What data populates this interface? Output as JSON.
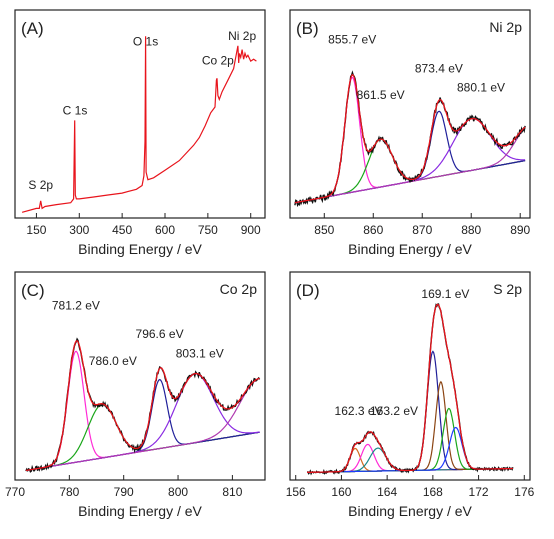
{
  "figure": {
    "colors": {
      "data": "#111111",
      "envelope": "#e8141c",
      "background": "#1a1a9a",
      "survey": "#e8141c",
      "magenta": "#ff2bd6",
      "green": "#1aa61a",
      "navy": "#20209a",
      "purple": "#8a2be2",
      "violet": "#b03ab0",
      "orange": "#d2691e",
      "olive": "#808000",
      "blue": "#1e3cff",
      "teal": "#1a8a8a",
      "brown": "#8b4513"
    }
  },
  "chart_data": [
    {
      "id": "A",
      "type": "line",
      "panel_label": "(A)",
      "corner_label": "",
      "xlabel": "Binding Energy / eV",
      "ylabel": "",
      "xlim": [
        75,
        950
      ],
      "ylim": [
        0,
        100
      ],
      "xticks": [
        150,
        300,
        450,
        600,
        750,
        900
      ],
      "tick_labels": [
        "150",
        "300",
        "450",
        "600",
        "750",
        "900"
      ],
      "grid": false,
      "annotations": [
        {
          "text": "S 2p",
          "x": 165,
          "y": 13
        },
        {
          "text": "C 1s",
          "x": 285,
          "y": 52
        },
        {
          "text": "O 1s",
          "x": 532,
          "y": 88
        },
        {
          "text": "Co 2p",
          "x": 785,
          "y": 78
        },
        {
          "text": "Ni 2p",
          "x": 870,
          "y": 91
        }
      ],
      "series": [
        {
          "color": "#e8141c",
          "x": [
            100,
            150,
            160,
            165,
            170,
            180,
            220,
            270,
            280,
            284,
            286,
            290,
            300,
            350,
            400,
            450,
            500,
            520,
            526,
            530,
            532,
            534,
            540,
            560,
            600,
            650,
            700,
            720,
            740,
            760,
            775,
            780,
            782,
            785,
            790,
            800,
            820,
            840,
            855,
            858,
            860,
            865,
            870,
            875,
            880,
            885,
            890,
            900,
            910,
            920
          ],
          "y": [
            3,
            5,
            5,
            9,
            5,
            6,
            7,
            8,
            10,
            51,
            12,
            10,
            10,
            11,
            12,
            13,
            15,
            17,
            22,
            40,
            95,
            24,
            20,
            21,
            25,
            30,
            38,
            42,
            48,
            55,
            58,
            72,
            73,
            64,
            62,
            66,
            72,
            78,
            90,
            81,
            86,
            84,
            88,
            83,
            86,
            84,
            85,
            82,
            83,
            82
          ]
        }
      ]
    },
    {
      "id": "B",
      "type": "line",
      "panel_label": "(B)",
      "corner_label": "Ni 2p",
      "xlabel": "Binding Energy / eV",
      "ylabel": "",
      "xlim": [
        843,
        892
      ],
      "ylim": [
        0,
        100
      ],
      "xticks": [
        850,
        860,
        870,
        880,
        890
      ],
      "tick_labels": [
        "850",
        "860",
        "870",
        "880",
        "890"
      ],
      "grid": false,
      "annotations": [
        {
          "text": "855.7 eV",
          "x": 855.7,
          "y": 89
        },
        {
          "text": "861.5 eV",
          "x": 861.5,
          "y": 60
        },
        {
          "text": "873.4 eV",
          "x": 873.4,
          "y": 74
        },
        {
          "text": "880.1 eV",
          "x": 882,
          "y": 64
        }
      ],
      "series": [
        {
          "name": "",
          "kind": "raw",
          "color": "#111111",
          "sigma": 0,
          "noise": 3.5,
          "x_start": 844,
          "x_end": 891
        },
        {
          "name": "",
          "kind": "envelope",
          "color": "#e8141c",
          "x_start": 844,
          "x_end": 891
        },
        {
          "name": "",
          "kind": "background",
          "color": "#1a1a9a",
          "x_start": 844,
          "x_end": 891,
          "baseline": [
            8,
            30
          ]
        },
        {
          "name": "",
          "kind": "peak",
          "color": "#ff2bd6",
          "center": 855.7,
          "height": 60,
          "sigma": 1.5
        },
        {
          "name": "",
          "kind": "peak",
          "color": "#1aa61a",
          "center": 861.5,
          "height": 25,
          "sigma": 2.4
        },
        {
          "name": "",
          "kind": "peak",
          "color": "#20209a",
          "center": 873.4,
          "height": 34,
          "sigma": 1.6
        },
        {
          "name": "",
          "kind": "peak",
          "color": "#8a2be2",
          "center": 880.1,
          "height": 27,
          "sigma": 3.8
        },
        {
          "name": "",
          "kind": "peak",
          "color": "#b03ab0",
          "center": 892,
          "height": 18,
          "sigma": 3.0
        }
      ]
    },
    {
      "id": "C",
      "type": "line",
      "panel_label": "(C)",
      "corner_label": "Co 2p",
      "xlabel": "Binding Energy / eV",
      "ylabel": "",
      "xlim": [
        770,
        816
      ],
      "ylim": [
        0,
        100
      ],
      "xticks": [
        770,
        780,
        790,
        800,
        810
      ],
      "tick_labels": [
        "770",
        "780",
        "790",
        "800",
        "810"
      ],
      "grid": false,
      "annotations": [
        {
          "text": "781.2 eV",
          "x": 781.2,
          "y": 87
        },
        {
          "text": "786.0 eV",
          "x": 788,
          "y": 58
        },
        {
          "text": "796.6 eV",
          "x": 796.6,
          "y": 72
        },
        {
          "text": "803.1 eV",
          "x": 804,
          "y": 62
        }
      ],
      "series": [
        {
          "name": "",
          "kind": "raw",
          "color": "#111111",
          "sigma": 0,
          "noise": 2.5,
          "x_start": 772,
          "x_end": 815
        },
        {
          "name": "",
          "kind": "envelope",
          "color": "#e8141c",
          "x_start": 772,
          "x_end": 815
        },
        {
          "name": "",
          "kind": "background",
          "color": "#1a1a9a",
          "x_start": 772,
          "x_end": 815,
          "baseline": [
            5,
            25
          ]
        },
        {
          "name": "",
          "kind": "peak",
          "color": "#ff2bd6",
          "center": 781.2,
          "height": 58,
          "sigma": 1.5
        },
        {
          "name": "",
          "kind": "peak",
          "color": "#1aa61a",
          "center": 786.0,
          "height": 28,
          "sigma": 2.6
        },
        {
          "name": "",
          "kind": "peak",
          "color": "#20209a",
          "center": 796.6,
          "height": 36,
          "sigma": 1.4
        },
        {
          "name": "",
          "kind": "peak",
          "color": "#8a2be2",
          "center": 803.1,
          "height": 36,
          "sigma": 3.4
        },
        {
          "name": "",
          "kind": "peak",
          "color": "#b03ab0",
          "center": 815,
          "height": 28,
          "sigma": 3.6
        }
      ]
    },
    {
      "id": "D",
      "type": "line",
      "panel_label": "(D)",
      "corner_label": "S 2p",
      "xlabel": "Binding Energy / eV",
      "ylabel": "",
      "xlim": [
        155.5,
        176.5
      ],
      "ylim": [
        0,
        100
      ],
      "xticks": [
        156,
        160,
        164,
        168,
        172,
        176
      ],
      "tick_labels": [
        "156",
        "160",
        "164",
        "168",
        "172",
        "176"
      ],
      "grid": false,
      "annotations": [
        {
          "text": "169.1 eV",
          "x": 169.1,
          "y": 93
        },
        {
          "text": "162.3 eV",
          "x": 161.5,
          "y": 32
        },
        {
          "text": "163.2 eV",
          "x": 164.6,
          "y": 32
        }
      ],
      "series": [
        {
          "name": "",
          "kind": "raw",
          "color": "#111111",
          "sigma": 0,
          "noise": 1.5,
          "x_start": 157,
          "x_end": 175
        },
        {
          "name": "",
          "kind": "envelope",
          "color": "#e8141c",
          "x_start": 157,
          "x_end": 175
        },
        {
          "name": "",
          "kind": "background",
          "color": "#808000",
          "x_start": 157,
          "x_end": 175,
          "baseline": [
            4,
            6
          ]
        },
        {
          "name": "",
          "kind": "peak",
          "color": "#d2691e",
          "center": 161.2,
          "height": 12,
          "sigma": 0.45
        },
        {
          "name": "",
          "kind": "peak",
          "color": "#ff2bd6",
          "center": 162.3,
          "height": 14,
          "sigma": 0.55
        },
        {
          "name": "",
          "kind": "peak",
          "color": "#1a8a8a",
          "center": 163.2,
          "height": 12,
          "sigma": 0.7
        },
        {
          "name": "",
          "kind": "peak",
          "color": "#20209a",
          "center": 168.0,
          "height": 62,
          "sigma": 0.5
        },
        {
          "name": "",
          "kind": "peak",
          "color": "#8b4513",
          "center": 168.7,
          "height": 46,
          "sigma": 0.45
        },
        {
          "name": "",
          "kind": "peak",
          "color": "#1aa61a",
          "center": 169.4,
          "height": 32,
          "sigma": 0.5
        },
        {
          "name": "",
          "kind": "peak",
          "color": "#1e3cff",
          "center": 170.0,
          "height": 22,
          "sigma": 0.55
        }
      ]
    }
  ]
}
